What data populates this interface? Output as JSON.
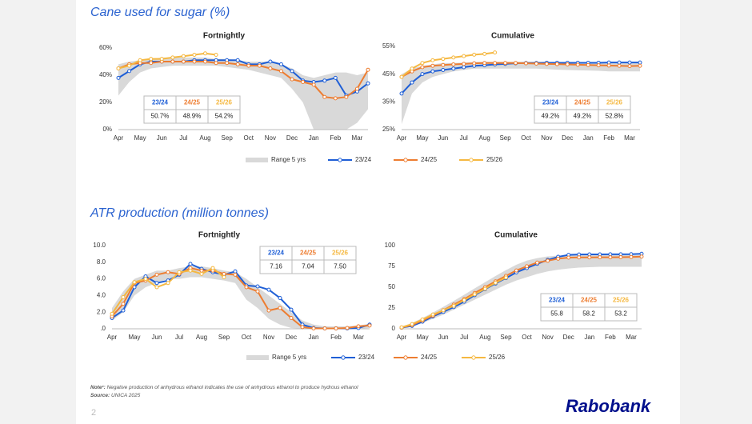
{
  "sections": [
    {
      "title": "Cane used for sugar (%)"
    },
    {
      "title": "ATR production (million tonnes)"
    }
  ],
  "chart_data": [
    {
      "type": "line",
      "title": "Fortnightly",
      "categories": [
        "Apr",
        null,
        "May",
        null,
        "Jun",
        null,
        "Jul",
        null,
        "Aug",
        null,
        "Sep",
        null,
        "Oct",
        null,
        "Nov",
        null,
        "Dec",
        null,
        "Jan",
        null,
        "Feb",
        null,
        "Mar",
        null
      ],
      "ylim": [
        0,
        60
      ],
      "yticks": [
        {
          "value": 0,
          "label": "0%"
        },
        {
          "value": 20,
          "label": "20%"
        },
        {
          "value": 40,
          "label": "40%"
        },
        {
          "value": 60,
          "label": "60%"
        }
      ],
      "grid": false,
      "series": [
        {
          "name": "Range 5 yrs",
          "color": "#d9d9d9",
          "low": [
            25,
            35,
            42,
            45,
            46,
            47,
            47,
            47,
            47,
            47,
            46,
            45,
            44,
            42,
            40,
            38,
            30,
            20,
            0,
            0,
            0,
            0,
            5,
            15
          ],
          "high": [
            48,
            50,
            51,
            52,
            53,
            53,
            53,
            53,
            53,
            52,
            52,
            51,
            50,
            50,
            50,
            48,
            45,
            40,
            38,
            40,
            42,
            42,
            40,
            42
          ]
        },
        {
          "name": "23/24",
          "color": "#1f5fd6",
          "values": [
            38,
            43,
            48,
            50,
            50,
            50,
            50,
            51,
            51,
            51,
            51,
            51,
            48,
            48,
            50,
            48,
            43,
            36,
            35,
            36,
            38,
            25,
            28,
            34
          ]
        },
        {
          "name": "24/25",
          "color": "#ed7d31",
          "values": [
            45,
            48,
            49,
            49,
            50,
            50,
            50,
            50,
            50,
            49,
            49,
            48,
            47,
            47,
            45,
            43,
            37,
            35,
            33,
            24,
            23,
            24,
            30,
            44
          ]
        },
        {
          "name": "25/26",
          "color": "#f5b841",
          "values": [
            45,
            47,
            51,
            52,
            52,
            53,
            54,
            55,
            56,
            55,
            null,
            null,
            null,
            null,
            null,
            null,
            null,
            null,
            null,
            null,
            null,
            null,
            null,
            null
          ]
        }
      ],
      "table": {
        "headers": [
          "23/24",
          "24/25",
          "25/26"
        ],
        "values": [
          50.7,
          48.9,
          54.2
        ],
        "value_labels": [
          "50.7%",
          "48.9%",
          "54.2%"
        ]
      }
    },
    {
      "type": "line",
      "title": "Cumulative",
      "categories": [
        "Apr",
        null,
        "May",
        null,
        "Jun",
        null,
        "Jul",
        null,
        "Aug",
        null,
        "Sep",
        null,
        "Oct",
        null,
        "Nov",
        null,
        "Dec",
        null,
        "Jan",
        null,
        "Feb",
        null,
        "Mar",
        null
      ],
      "ylim": [
        25,
        55
      ],
      "yticks": [
        {
          "value": 25,
          "label": "25%"
        },
        {
          "value": 35,
          "label": "35%"
        },
        {
          "value": 45,
          "label": "45%"
        },
        {
          "value": 55,
          "label": "55%"
        }
      ],
      "grid": false,
      "series": [
        {
          "color": "#d9d9d9",
          "low": [
            27,
            38,
            42,
            44,
            45,
            46,
            46.5,
            47,
            47,
            47,
            47,
            47,
            47,
            47,
            46.8,
            46.6,
            46.5,
            46.4,
            46.3,
            46.2,
            46,
            46,
            46,
            46
          ],
          "high": [
            45,
            47,
            48,
            48.5,
            49,
            49,
            49.2,
            49.4,
            49.5,
            49.5,
            49.5,
            49.5,
            49.5,
            49.5,
            49.4,
            49.4,
            49.3,
            49.3,
            49.2,
            49.2,
            49.2,
            49.2,
            49.2,
            49.2
          ]
        },
        {
          "color": "#1f5fd6",
          "values": [
            38,
            42,
            45,
            46,
            46.5,
            47,
            47.5,
            48,
            48.2,
            48.5,
            48.7,
            48.9,
            49,
            49,
            49.1,
            49.1,
            49.1,
            49.1,
            49.1,
            49.1,
            49.2,
            49.2,
            49.2,
            49.2
          ]
        },
        {
          "color": "#ed7d31",
          "values": [
            44,
            46,
            47.5,
            48,
            48.3,
            48.5,
            48.7,
            48.9,
            49,
            49,
            49,
            49,
            48.9,
            48.8,
            48.7,
            48.6,
            48.5,
            48.4,
            48.3,
            48.2,
            48.1,
            48,
            47.9,
            48
          ]
        },
        {
          "color": "#f5b841",
          "values": [
            44,
            47,
            49,
            50,
            50.5,
            51,
            51.5,
            52,
            52.3,
            52.8,
            null,
            null,
            null,
            null,
            null,
            null,
            null,
            null,
            null,
            null,
            null,
            null,
            null,
            null
          ]
        }
      ],
      "table": {
        "headers": [
          "23/24",
          "24/25",
          "25/26"
        ],
        "values": [
          49.2,
          49.2,
          52.8
        ],
        "value_labels": [
          "49.2%",
          "49.2%",
          "52.8%"
        ]
      }
    },
    {
      "type": "line",
      "title": "Fortnightly",
      "categories": [
        "Apr",
        null,
        "May",
        null,
        "Jun",
        null,
        "Jul",
        null,
        "Aug",
        null,
        "Sep",
        null,
        "Oct",
        null,
        "Nov",
        null,
        "Dec",
        null,
        "Jan",
        null,
        "Feb",
        null,
        "Mar",
        null
      ],
      "ylim": [
        0,
        10
      ],
      "yticks": [
        {
          "value": 0,
          "label": ".0"
        },
        {
          "value": 2,
          "label": "2.0"
        },
        {
          "value": 4,
          "label": "4.0"
        },
        {
          "value": 6,
          "label": "6.0"
        },
        {
          "value": 8,
          "label": "8.0"
        },
        {
          "value": 10,
          "label": "10.0"
        }
      ],
      "grid": false,
      "series": [
        {
          "name": "Range 5 yrs",
          "color": "#d9d9d9",
          "low": [
            1,
            2,
            4,
            5,
            5.5,
            6,
            6,
            6.2,
            6.2,
            6,
            5.8,
            5.5,
            3.5,
            2.5,
            1.2,
            0.5,
            0.1,
            0,
            0,
            0,
            0,
            0,
            0,
            0.1
          ],
          "high": [
            2.5,
            4.5,
            6,
            6.5,
            7,
            7,
            7.3,
            7.5,
            7.5,
            7.3,
            7,
            6.8,
            6,
            5,
            4,
            3,
            2,
            1,
            0.5,
            0.3,
            0.3,
            0.3,
            0.4,
            0.6
          ]
        },
        {
          "name": "23/24",
          "color": "#1f5fd6",
          "values": [
            1.3,
            2.2,
            5,
            6.3,
            5.5,
            5.8,
            6.5,
            7.8,
            7.2,
            6.8,
            6.5,
            6.9,
            5.2,
            5.1,
            4.7,
            3.7,
            2.3,
            0.5,
            0.1,
            0.05,
            0.05,
            0.05,
            0.1,
            0.5
          ]
        },
        {
          "name": "24/25",
          "color": "#ed7d31",
          "values": [
            1.5,
            3,
            5.5,
            5.8,
            6.5,
            6.8,
            6.6,
            7.3,
            7,
            7,
            6.6,
            6.5,
            5,
            4.5,
            2.2,
            2.5,
            1.3,
            0.2,
            0.05,
            0.05,
            0.05,
            0.1,
            0.3,
            0.4
          ]
        },
        {
          "name": "25/26",
          "color": "#f5b841",
          "values": [
            1.8,
            3.8,
            5.6,
            6,
            5,
            5.5,
            6.8,
            7,
            6.6,
            7.3,
            6.2,
            null,
            null,
            null,
            null,
            null,
            null,
            null,
            null,
            null,
            null,
            null,
            null,
            null
          ]
        }
      ],
      "table": {
        "headers": [
          "23/24",
          "24/25",
          "25/26"
        ],
        "values": [
          7.16,
          7.04,
          7.5
        ],
        "value_labels": [
          "7.16",
          "7.04",
          "7.50"
        ]
      }
    },
    {
      "type": "line",
      "title": "Cumulative",
      "categories": [
        "Apr",
        null,
        "May",
        null,
        "Jun",
        null,
        "Jul",
        null,
        "Aug",
        null,
        "Sep",
        null,
        "Oct",
        null,
        "Nov",
        null,
        "Dec",
        null,
        "Jan",
        null,
        "Feb",
        null,
        "Mar",
        null
      ],
      "ylim": [
        0,
        100
      ],
      "yticks": [
        0,
        25,
        50,
        75,
        100
      ],
      "grid": false,
      "series": [
        {
          "color": "#d9d9d9",
          "low": [
            1,
            3,
            7,
            12,
            17,
            23,
            29,
            35,
            41,
            47,
            53,
            58,
            62,
            66,
            69,
            71,
            72.5,
            73.5,
            74,
            74.5,
            74.5,
            74.5,
            74.5,
            74.5
          ],
          "high": [
            2.5,
            7,
            13,
            19.5,
            26.5,
            33.5,
            41,
            48.5,
            56,
            63.5,
            70.5,
            77,
            82,
            85,
            87,
            88,
            88.5,
            88.5,
            88.5,
            88.5,
            88.5,
            88.5,
            88.5,
            88.5
          ]
        },
        {
          "color": "#1f5fd6",
          "values": [
            1.3,
            3.5,
            8.5,
            14.8,
            20.3,
            26.1,
            32.6,
            40.4,
            47.6,
            54.4,
            60.9,
            67.8,
            73,
            78.1,
            82.8,
            86.5,
            88.8,
            89.3,
            89.4,
            89.45,
            89.5,
            89.55,
            89.65,
            90.15
          ]
        },
        {
          "color": "#ed7d31",
          "values": [
            1.5,
            4.5,
            10,
            15.8,
            22.3,
            29.1,
            35.7,
            43,
            50,
            57,
            63.6,
            70.1,
            75.1,
            79.6,
            81.8,
            84.3,
            85.6,
            85.8,
            85.85,
            85.9,
            85.95,
            86.05,
            86.35,
            86.75
          ]
        },
        {
          "color": "#f5b841",
          "values": [
            1.8,
            5.6,
            11.2,
            17.2,
            22.2,
            27.7,
            34.5,
            41.5,
            48.1,
            55.4,
            61.6,
            null,
            null,
            null,
            null,
            null,
            null,
            null,
            null,
            null,
            null,
            null,
            null,
            null
          ]
        }
      ],
      "table": {
        "headers": [
          "23/24",
          "24/25",
          "25/26"
        ],
        "values": [
          55.8,
          58.2,
          53.2
        ],
        "value_labels": [
          "55.8",
          "58.2",
          "53.2"
        ]
      }
    }
  ],
  "note_label": "Note¹:",
  "note": "Negative production of anhydrous ethanol indicates the use of anhydrous ethanol to produce hydrous ethanol",
  "source_label": "Source:",
  "source": "UNICA 2025",
  "page_number": "2",
  "logo": "Rabobank"
}
